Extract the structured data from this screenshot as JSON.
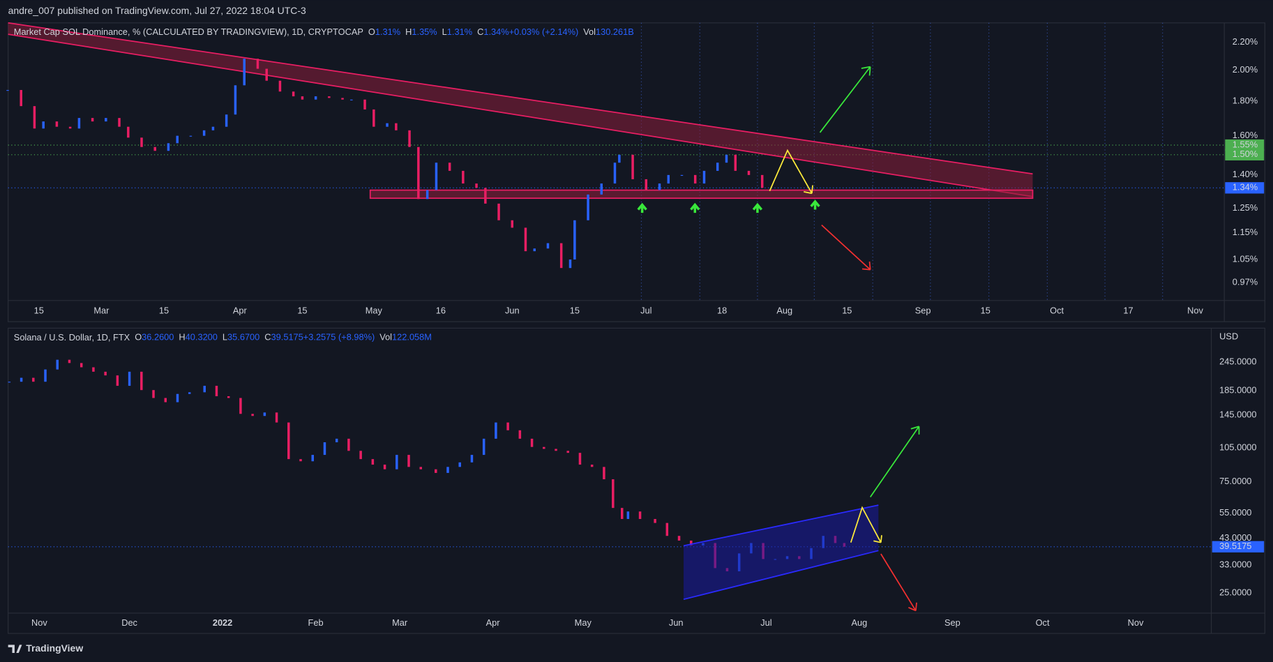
{
  "header": "andre_007 published on TradingView.com, Jul 27, 2022 18:04 UTC-3",
  "footer": "TradingView",
  "chart_data": [
    {
      "type": "candlestick",
      "title": "Market Cap SOL Dominance, % (CALCULATED BY TRADINGVIEW), 1D, CRYPTOCAP",
      "ohlc": [
        {
          "label": "O",
          "text": "1.31%"
        },
        {
          "label": "H",
          "text": "1.35%"
        },
        {
          "label": "L",
          "text": "1.31%"
        },
        {
          "label": "C",
          "text": "1.34%"
        },
        {
          "label": "",
          "text": "+0.03% (+2.14%)"
        },
        {
          "label": "Vol",
          "text": "130.261B"
        }
      ],
      "log_scale": true,
      "grid": false,
      "up_color": "#2962ff",
      "down_color": "#e91e63",
      "x": [
        38,
        41,
        44,
        46,
        49,
        52,
        54,
        57,
        60,
        63,
        65,
        68,
        71,
        74,
        76,
        79,
        82,
        84,
        87,
        89,
        91,
        94,
        96,
        99,
        102,
        104,
        107,
        110,
        113,
        115,
        118,
        120,
        123,
        125,
        128,
        130,
        132,
        134,
        137,
        140,
        143,
        145,
        148,
        151,
        154,
        156,
        159,
        162,
        164,
        165,
        168,
        171,
        174,
        175,
        178,
        181,
        184,
        186,
        189,
        192,
        194,
        197,
        199,
        201,
        204,
        207
      ],
      "values": [
        1.87,
        1.77,
        1.64,
        1.68,
        1.65,
        1.64,
        1.7,
        1.68,
        1.7,
        1.65,
        1.59,
        1.54,
        1.52,
        1.56,
        1.6,
        1.6,
        1.63,
        1.65,
        1.72,
        1.9,
        2.08,
        2.01,
        1.93,
        1.86,
        1.83,
        1.81,
        1.83,
        1.82,
        1.81,
        1.81,
        1.75,
        1.65,
        1.67,
        1.63,
        1.54,
        1.29,
        1.33,
        1.46,
        1.42,
        1.36,
        1.34,
        1.27,
        1.2,
        1.17,
        1.08,
        1.09,
        1.11,
        1.02,
        1.05,
        1.2,
        1.31,
        1.36,
        1.46,
        1.5,
        1.38,
        1.33,
        1.36,
        1.4,
        1.4,
        1.36,
        1.42,
        1.46,
        1.5,
        1.42,
        1.4,
        1.34
      ],
      "xlim": [
        38.1,
        310.5
      ],
      "xticks": [
        {
          "value": 45,
          "label": "15"
        },
        {
          "value": 59,
          "label": "Mar"
        },
        {
          "value": 73,
          "label": "15"
        },
        {
          "value": 90,
          "label": "Apr"
        },
        {
          "value": 104,
          "label": "15"
        },
        {
          "value": 120,
          "label": "May"
        },
        {
          "value": 135,
          "label": "16"
        },
        {
          "value": 151,
          "label": "Jun"
        },
        {
          "value": 165,
          "label": "15"
        },
        {
          "value": 181,
          "label": "Jul"
        },
        {
          "value": 198,
          "label": "18"
        },
        {
          "value": 212,
          "label": "Aug"
        },
        {
          "value": 226,
          "label": "15"
        },
        {
          "value": 243,
          "label": "Sep"
        },
        {
          "value": 257,
          "label": "15"
        },
        {
          "value": 273,
          "label": "Oct"
        },
        {
          "value": 289,
          "label": "17"
        },
        {
          "value": 304,
          "label": "Nov"
        }
      ],
      "ylim": [
        0.913,
        2.35
      ],
      "yticks": [
        {
          "value": 2.2,
          "label": "2.20%"
        },
        {
          "value": 2.0,
          "label": "2.00%"
        },
        {
          "value": 1.8,
          "label": "1.80%"
        },
        {
          "value": 1.6,
          "label": "1.60%"
        },
        {
          "value": 1.4,
          "label": "1.40%"
        },
        {
          "value": 1.25,
          "label": "1.25%"
        },
        {
          "value": 1.15,
          "label": "1.15%"
        },
        {
          "value": 1.05,
          "label": "1.05%"
        },
        {
          "value": 0.97,
          "label": "0.97%"
        }
      ],
      "price_lines": [
        {
          "value": 1.55,
          "label": "1.55%",
          "color": "#4caf50"
        },
        {
          "value": 1.5,
          "label": "1.50%",
          "color": "#4caf50"
        },
        {
          "value": 1.34,
          "label": "1.34%",
          "color": "#2962ff"
        }
      ]
    },
    {
      "type": "candlestick",
      "title": "Solana / U.S. Dollar, 1D, FTX",
      "ohlc": [
        {
          "label": "O",
          "text": "36.2600"
        },
        {
          "label": "H",
          "text": "40.3200"
        },
        {
          "label": "L",
          "text": "35.6700"
        },
        {
          "label": "C",
          "text": "39.5175"
        },
        {
          "label": "",
          "text": "+3.2575 (+8.98%)"
        },
        {
          "label": "Vol",
          "text": "122.058M"
        }
      ],
      "axis_unit": "USD",
      "log_scale": true,
      "grid": false,
      "up_color": "#2962ff",
      "down_color": "#e91e63",
      "x": [
        -71,
        -67,
        -63,
        -59,
        -55,
        -51,
        -47,
        -43,
        -39,
        -35,
        -31,
        -27,
        -23,
        -19,
        -15,
        -11,
        -6,
        -2,
        2,
        6,
        10,
        14,
        18,
        22,
        26,
        30,
        34,
        38,
        42,
        46,
        50,
        54,
        58,
        62,
        66,
        71,
        75,
        79,
        83,
        87,
        91,
        95,
        99,
        103,
        107,
        111,
        115,
        119,
        123,
        127,
        130,
        133,
        135,
        139,
        144,
        148,
        152,
        156,
        160,
        164,
        168,
        172,
        176,
        180,
        184,
        188,
        192,
        196,
        200,
        204,
        207
      ],
      "values": [
        202,
        210,
        202,
        228,
        251,
        243,
        233,
        223,
        215,
        194,
        223,
        186,
        172,
        165,
        179,
        182,
        194,
        175,
        172,
        147,
        144,
        149,
        135,
        94,
        92,
        98,
        111,
        115,
        102,
        94,
        89,
        85,
        98,
        87,
        85,
        82,
        87,
        91,
        98,
        115,
        135,
        125,
        115,
        106,
        104,
        102,
        100,
        89,
        87,
        77,
        58,
        52,
        56,
        52,
        50,
        44,
        42,
        40,
        41,
        32,
        31,
        37,
        41,
        35,
        35,
        36,
        35,
        39,
        44,
        41,
        39.5175
      ],
      "xlim": [
        -71.4,
        329.2
      ],
      "xticks": [
        {
          "value": -61,
          "label": "Nov"
        },
        {
          "value": -31,
          "label": "Dec"
        },
        {
          "value": 0,
          "label": "2022"
        },
        {
          "value": 31,
          "label": "Feb"
        },
        {
          "value": 59,
          "label": "Mar"
        },
        {
          "value": 90,
          "label": "Apr"
        },
        {
          "value": 120,
          "label": "May"
        },
        {
          "value": 151,
          "label": "Jun"
        },
        {
          "value": 181,
          "label": "Jul"
        },
        {
          "value": 212,
          "label": "Aug"
        },
        {
          "value": 243,
          "label": "Sep"
        },
        {
          "value": 273,
          "label": "Oct"
        },
        {
          "value": 304,
          "label": "Nov"
        }
      ],
      "ylim": [
        20.5,
        343
      ],
      "yticks": [
        {
          "value": 245,
          "label": "245.0000"
        },
        {
          "value": 185,
          "label": "185.0000"
        },
        {
          "value": 145,
          "label": "145.0000"
        },
        {
          "value": 105,
          "label": "105.0000"
        },
        {
          "value": 75,
          "label": "75.0000"
        },
        {
          "value": 55,
          "label": "55.0000"
        },
        {
          "value": 43,
          "label": "43.0000"
        },
        {
          "value": 33,
          "label": "33.0000"
        },
        {
          "value": 25,
          "label": "25.0000"
        }
      ],
      "price_lines": [
        {
          "value": 39.5175,
          "label": "39.5175",
          "color": "#2962ff"
        }
      ]
    }
  ]
}
